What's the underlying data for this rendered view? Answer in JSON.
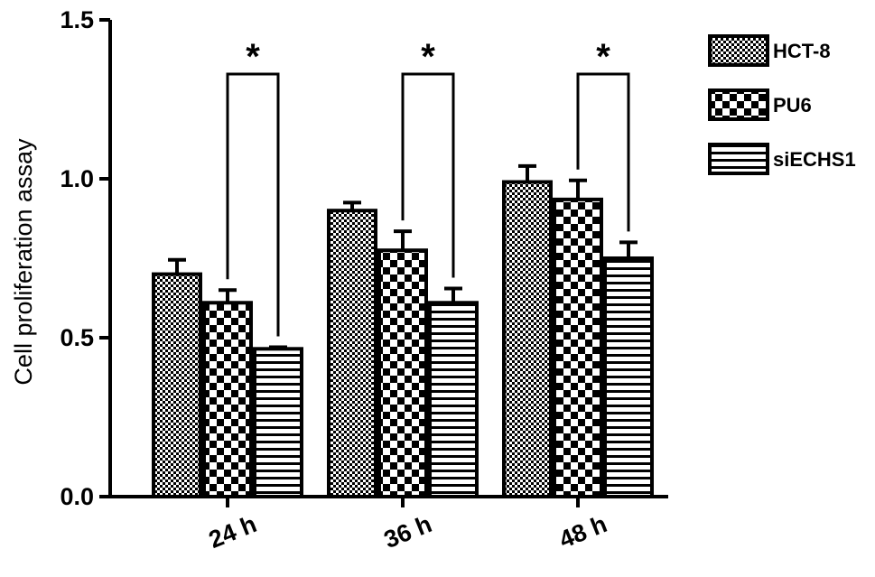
{
  "chart_data": {
    "type": "bar",
    "title": "",
    "xlabel": "",
    "ylabel": "Cell proliferation assay",
    "ylim": [
      0,
      1.5
    ],
    "yticks": [
      "0.0",
      "0.5",
      "1.0",
      "1.5"
    ],
    "ytick_values": [
      0,
      0.5,
      1.0,
      1.5
    ],
    "categories": [
      "24 h",
      "36 h",
      "48 h"
    ],
    "series": [
      {
        "name": "HCT-8",
        "pattern": "fine-checker",
        "values": [
          0.7,
          0.9,
          0.99
        ],
        "errors": [
          0.045,
          0.025,
          0.05
        ]
      },
      {
        "name": "PU6",
        "pattern": "coarse-checker",
        "values": [
          0.61,
          0.775,
          0.935
        ],
        "errors": [
          0.04,
          0.06,
          0.06
        ]
      },
      {
        "name": "siECHS1",
        "pattern": "horizontal-stripes",
        "values": [
          0.465,
          0.61,
          0.75
        ],
        "errors": [
          0.005,
          0.045,
          0.05
        ]
      }
    ],
    "significance": [
      {
        "category": "24 h",
        "from": "PU6",
        "to": "siECHS1",
        "label": "*"
      },
      {
        "category": "36 h",
        "from": "PU6",
        "to": "siECHS1",
        "label": "*"
      },
      {
        "category": "48 h",
        "from": "PU6",
        "to": "siECHS1",
        "label": "*"
      }
    ],
    "legend_position": "top-right",
    "grid": false
  }
}
